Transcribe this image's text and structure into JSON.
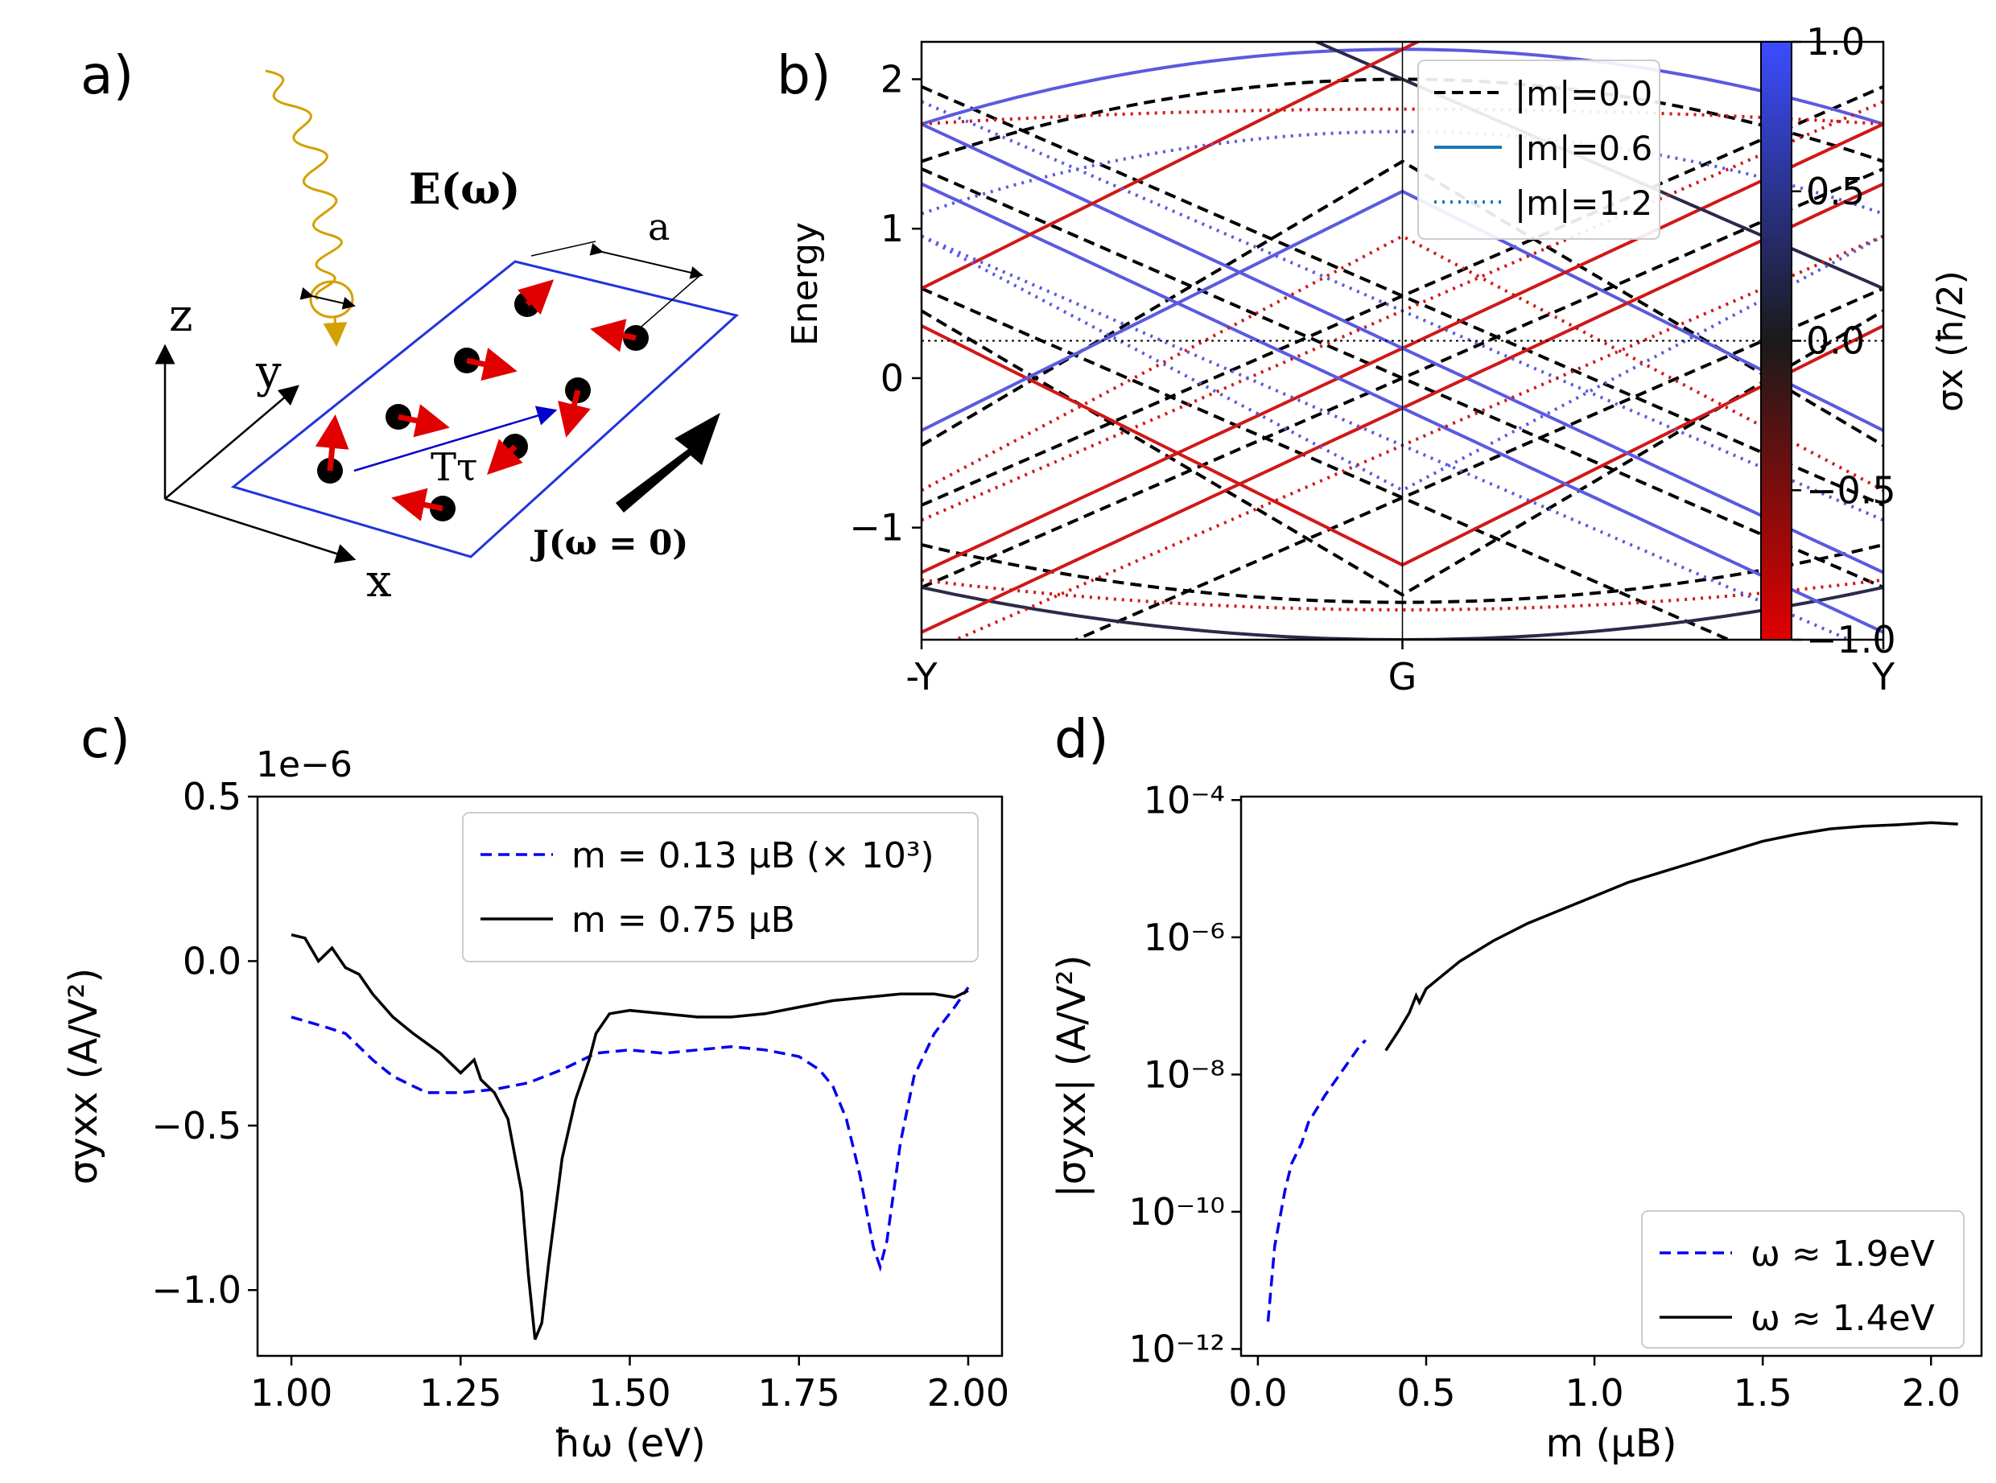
{
  "panels": {
    "a": {
      "label": "a)",
      "field_label": "E(ω)",
      "spacing_label": "a",
      "axis_x": "x",
      "axis_y": "y",
      "axis_z": "z",
      "translation_label": "Tτ",
      "current_label": "J(ω = 0)"
    },
    "b": {
      "label": "b)"
    },
    "c": {
      "label": "c)"
    },
    "d": {
      "label": "d)"
    }
  },
  "chart_data": [
    {
      "id": "b",
      "type": "line",
      "ylabel": "Energy",
      "xticks": [
        "-Y",
        "G",
        "Y"
      ],
      "yticks": [
        "−1",
        "0",
        "1",
        "2"
      ],
      "ylim": [
        -1.75,
        2.25
      ],
      "reference_line_energy": 0.25,
      "legend_position": "top-right",
      "series": [
        {
          "name": "|m|=0.0",
          "style": "dashed",
          "color": "#000000"
        },
        {
          "name": "|m|=0.6",
          "style": "solid",
          "color": "#1f77b4"
        },
        {
          "name": "|m|=1.2",
          "style": "dotted",
          "color": "#1f77b4"
        }
      ],
      "colorbar": {
        "label": "σx (ħ/2)",
        "range": [
          -1.0,
          1.0
        ],
        "ticks": [
          "1.0",
          "0.5",
          "0.0",
          "−0.5",
          "−1.0"
        ],
        "colors": [
          "#3b4cff",
          "#1a1a1a",
          "#e00000"
        ]
      }
    },
    {
      "id": "c",
      "type": "line",
      "xlabel": "ħω (eV)",
      "ylabel": "σyxx (A/V²)",
      "offset_label": "1e−6",
      "xlim": [
        0.95,
        2.05
      ],
      "ylim": [
        -1.2,
        0.5
      ],
      "xticks": [
        "1.00",
        "1.25",
        "1.50",
        "1.75",
        "2.00"
      ],
      "yticks": [
        "0.5",
        "0.0",
        "−0.5",
        "−1.0"
      ],
      "legend_position": "top-right",
      "series": [
        {
          "name": "m = 0.13 μB (× 10³)",
          "style": "dashed",
          "color": "#0000ee",
          "x": [
            1.0,
            1.05,
            1.08,
            1.12,
            1.15,
            1.18,
            1.2,
            1.25,
            1.3,
            1.35,
            1.4,
            1.45,
            1.5,
            1.55,
            1.6,
            1.65,
            1.7,
            1.75,
            1.78,
            1.8,
            1.82,
            1.84,
            1.86,
            1.87,
            1.88,
            1.9,
            1.92,
            1.95,
            1.98,
            2.0
          ],
          "y": [
            -0.17,
            -0.2,
            -0.22,
            -0.3,
            -0.35,
            -0.38,
            -0.4,
            -0.4,
            -0.39,
            -0.37,
            -0.33,
            -0.28,
            -0.27,
            -0.28,
            -0.27,
            -0.26,
            -0.27,
            -0.29,
            -0.33,
            -0.38,
            -0.48,
            -0.65,
            -0.87,
            -0.93,
            -0.85,
            -0.55,
            -0.35,
            -0.22,
            -0.14,
            -0.08
          ]
        },
        {
          "name": "m = 0.75 μB",
          "style": "solid",
          "color": "#000000",
          "x": [
            1.0,
            1.02,
            1.04,
            1.06,
            1.08,
            1.1,
            1.12,
            1.15,
            1.18,
            1.2,
            1.22,
            1.25,
            1.27,
            1.28,
            1.3,
            1.32,
            1.34,
            1.35,
            1.36,
            1.37,
            1.38,
            1.4,
            1.42,
            1.44,
            1.45,
            1.47,
            1.5,
            1.55,
            1.6,
            1.65,
            1.7,
            1.75,
            1.8,
            1.85,
            1.9,
            1.95,
            1.98,
            2.0
          ],
          "y": [
            0.08,
            0.07,
            0.0,
            0.04,
            -0.02,
            -0.04,
            -0.1,
            -0.17,
            -0.22,
            -0.25,
            -0.28,
            -0.34,
            -0.3,
            -0.36,
            -0.4,
            -0.48,
            -0.7,
            -0.95,
            -1.15,
            -1.1,
            -0.92,
            -0.6,
            -0.42,
            -0.3,
            -0.22,
            -0.16,
            -0.15,
            -0.16,
            -0.17,
            -0.17,
            -0.16,
            -0.14,
            -0.12,
            -0.11,
            -0.1,
            -0.1,
            -0.11,
            -0.09
          ]
        }
      ]
    },
    {
      "id": "d",
      "type": "line",
      "xlabel": "m (μB)",
      "ylabel": "|σyxx| (A/V²)",
      "xlim": [
        -0.05,
        2.15
      ],
      "ylim_exponent": [
        -12,
        -4
      ],
      "log_y": true,
      "xticks": [
        "0.0",
        "0.5",
        "1.0",
        "1.5",
        "2.0"
      ],
      "yticks": [
        "10⁻⁴",
        "10⁻⁶",
        "10⁻⁸",
        "10⁻¹⁰",
        "10⁻¹²"
      ],
      "legend_position": "bottom-right",
      "series": [
        {
          "name": "ω ≈ 1.9eV",
          "style": "dashed",
          "color": "#0000ee",
          "x": [
            0.03,
            0.05,
            0.08,
            0.1,
            0.13,
            0.15,
            0.2,
            0.25,
            0.3,
            0.32
          ],
          "log10_y": [
            -11.6,
            -10.5,
            -9.7,
            -9.3,
            -9.0,
            -8.7,
            -8.3,
            -7.95,
            -7.6,
            -7.5
          ]
        },
        {
          "name": "ω ≈ 1.4eV",
          "style": "solid",
          "color": "#000000",
          "x": [
            0.38,
            0.42,
            0.45,
            0.47,
            0.48,
            0.5,
            0.6,
            0.7,
            0.8,
            0.9,
            1.0,
            1.1,
            1.2,
            1.3,
            1.4,
            1.5,
            1.6,
            1.7,
            1.8,
            1.9,
            2.0,
            2.08
          ],
          "log10_y": [
            -7.65,
            -7.35,
            -7.1,
            -6.85,
            -6.95,
            -6.75,
            -6.35,
            -6.05,
            -5.8,
            -5.6,
            -5.4,
            -5.2,
            -5.05,
            -4.9,
            -4.75,
            -4.6,
            -4.5,
            -4.42,
            -4.38,
            -4.36,
            -4.33,
            -4.35
          ]
        }
      ]
    }
  ]
}
